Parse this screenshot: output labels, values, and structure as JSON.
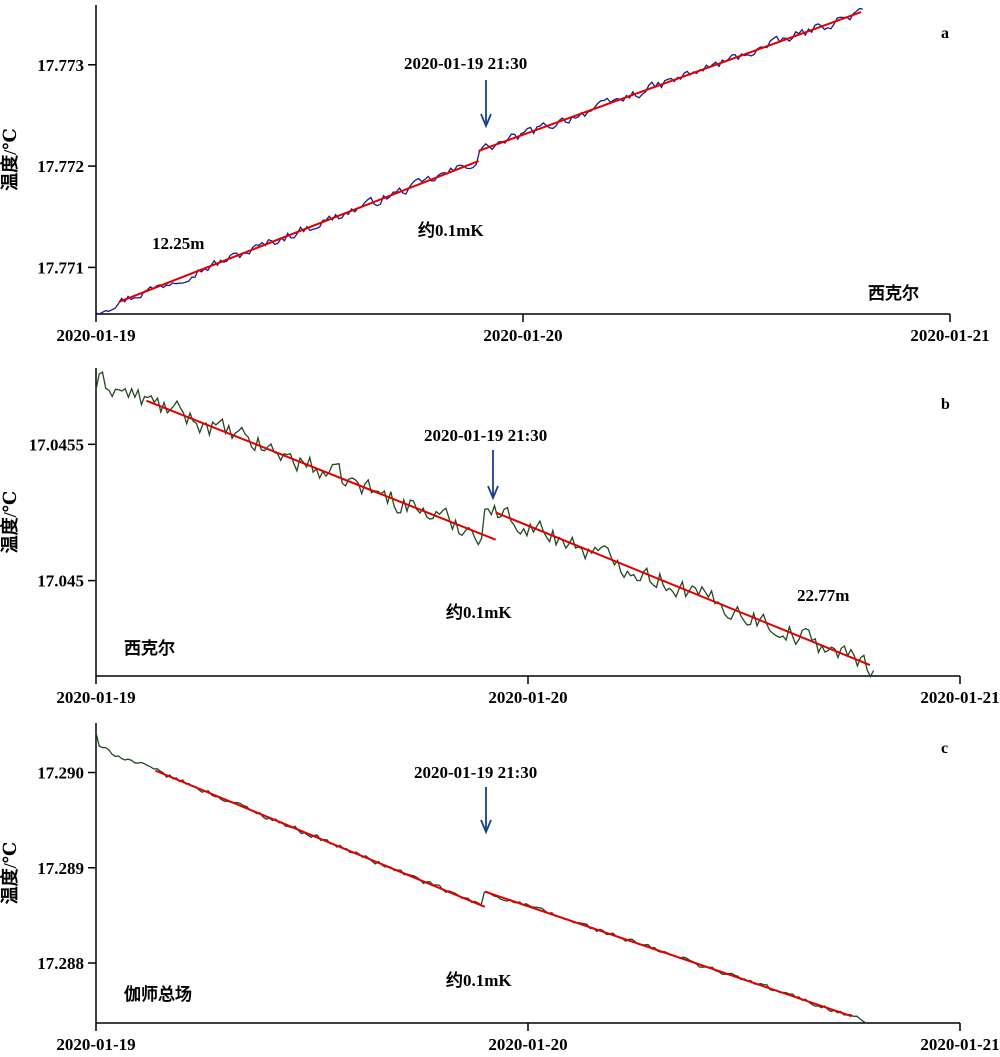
{
  "colors": {
    "noise_a": "#1a1a8c",
    "noise_bc": "#1f4a1f",
    "fit": "#e00000",
    "arrow": "#1a3f8c",
    "axis": "#000000"
  },
  "chart_data": [
    {
      "type": "line",
      "panel_label": "a",
      "ylabel": "温度/℃",
      "x_ticks": [
        "2020-01-19",
        "2020-01-20",
        "2020-01-21"
      ],
      "xlim": [
        0,
        48
      ],
      "ylim": [
        17.77054,
        17.77359
      ],
      "y_ticks": [
        17.771,
        17.772,
        17.773
      ],
      "y_tick_labels": [
        "17.771",
        "17.772",
        "17.773"
      ],
      "station": "西克尔",
      "depth_label": "12.25m",
      "offset_label": "约0.1mK",
      "event_label": "2020-01-19 21:30",
      "event_x": 21.5,
      "series_start": [
        0,
        17.77055
      ],
      "series_end": [
        43.1,
        17.77355
      ],
      "noise_amp": 5.5e-05,
      "fit_segments": [
        {
          "x": [
            1.3,
            21.5
          ],
          "y": [
            17.77066,
            17.77205
          ]
        },
        {
          "x": [
            21.5,
            43.0
          ],
          "y": [
            17.77215,
            17.77352
          ]
        }
      ]
    },
    {
      "type": "line",
      "panel_label": "b",
      "ylabel": "温度/℃",
      "x_ticks": [
        "2020-01-19",
        "2020-01-20",
        "2020-01-21"
      ],
      "xlim": [
        0,
        48
      ],
      "ylim": [
        17.04465,
        17.04578
      ],
      "y_ticks": [
        17.045,
        17.0455
      ],
      "y_tick_labels": [
        "17.045",
        "17.0455"
      ],
      "station": "西克尔",
      "depth_label": "22.77m",
      "offset_label": "约0.1mK",
      "event_label": "2020-01-19 21:30",
      "event_x": 21.5,
      "series_start": [
        0,
        17.0457
      ],
      "series_end": [
        43.2,
        17.04467
      ],
      "noise_amp": 4.5e-05,
      "fit_segments": [
        {
          "x": [
            2.8,
            22.2
          ],
          "y": [
            17.04566,
            17.04515
          ]
        },
        {
          "x": [
            22.2,
            43.0
          ],
          "y": [
            17.04525,
            17.04469
          ]
        }
      ]
    },
    {
      "type": "line",
      "panel_label": "c",
      "ylabel": "温度/℃",
      "x_ticks": [
        "2020-01-19",
        "2020-01-20",
        "2020-01-21"
      ],
      "xlim": [
        0,
        48
      ],
      "ylim": [
        17.28737,
        17.29052
      ],
      "y_ticks": [
        17.288,
        17.289,
        17.29
      ],
      "y_tick_labels": [
        "17.288",
        "17.289",
        "17.290"
      ],
      "station": "伽师总场",
      "offset_label": "约0.1mK",
      "event_label": "2020-01-19 21:30",
      "event_x": 21.5,
      "series_start": [
        0,
        17.29042
      ],
      "series_end": [
        42.8,
        17.28737
      ],
      "noise_amp": 3e-05,
      "fit_segments": [
        {
          "x": [
            3.3,
            21.6
          ],
          "y": [
            17.29002,
            17.28859
          ]
        },
        {
          "x": [
            21.6,
            42.0
          ],
          "y": [
            17.28875,
            17.28744
          ]
        }
      ]
    }
  ]
}
